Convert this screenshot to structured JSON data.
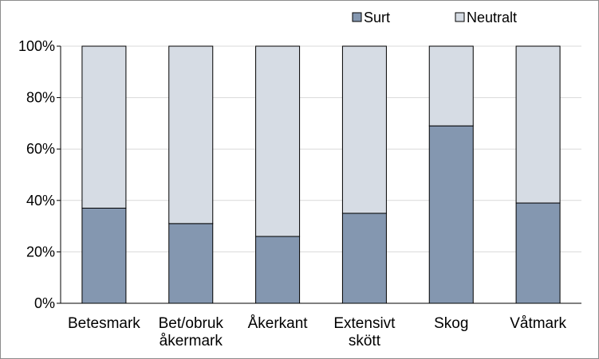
{
  "chart_data": {
    "type": "bar",
    "stacked": true,
    "categories": [
      [
        "Betesmark"
      ],
      [
        "Bet/obruk",
        "åkermark"
      ],
      [
        "Åkerkant"
      ],
      [
        "Extensivt",
        "skött"
      ],
      [
        "Skog"
      ],
      [
        "Våtmark"
      ]
    ],
    "series": [
      {
        "name": "Surt",
        "color": "#8497b0",
        "values": [
          37,
          31,
          26,
          35,
          69,
          39
        ]
      },
      {
        "name": "Neutralt",
        "color": "#d6dce4",
        "values": [
          63,
          69,
          74,
          65,
          31,
          61
        ]
      }
    ],
    "ylim": [
      0,
      100
    ],
    "yticks": [
      "0%",
      "20%",
      "40%",
      "60%",
      "80%",
      "100%"
    ],
    "grid": true,
    "legend": "top-right"
  }
}
